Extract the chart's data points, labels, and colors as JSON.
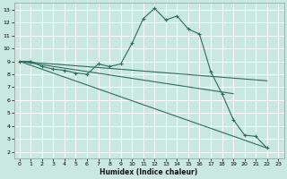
{
  "xlabel": "Humidex (Indice chaleur)",
  "bg_color": "#c8e8e0",
  "grid_color": "#ffffff",
  "line_color": "#2e6b60",
  "xlim": [
    -0.5,
    23.5
  ],
  "ylim": [
    1.5,
    13.5
  ],
  "xticks": [
    0,
    1,
    2,
    3,
    4,
    5,
    6,
    7,
    8,
    9,
    10,
    11,
    12,
    13,
    14,
    15,
    16,
    17,
    18,
    19,
    20,
    21,
    22,
    23
  ],
  "yticks": [
    2,
    3,
    4,
    5,
    6,
    7,
    8,
    9,
    10,
    11,
    12,
    13
  ],
  "series": [
    {
      "x": [
        0,
        1,
        2,
        3,
        4,
        5,
        6,
        7,
        8,
        9,
        10,
        11,
        12,
        13,
        14,
        15,
        16,
        17,
        18,
        19,
        20,
        21,
        22
      ],
      "y": [
        9.0,
        9.0,
        8.6,
        8.4,
        8.3,
        8.1,
        8.0,
        8.8,
        8.6,
        8.8,
        10.4,
        12.3,
        13.1,
        12.2,
        12.5,
        11.5,
        11.1,
        8.2,
        6.5,
        4.5,
        3.3,
        3.2,
        2.3
      ],
      "markers": true
    },
    {
      "x": [
        0,
        22
      ],
      "y": [
        9.0,
        2.3
      ],
      "markers": false
    },
    {
      "x": [
        0,
        19
      ],
      "y": [
        9.0,
        6.5
      ],
      "markers": false
    },
    {
      "x": [
        0,
        22
      ],
      "y": [
        9.0,
        7.5
      ],
      "markers": false
    }
  ]
}
